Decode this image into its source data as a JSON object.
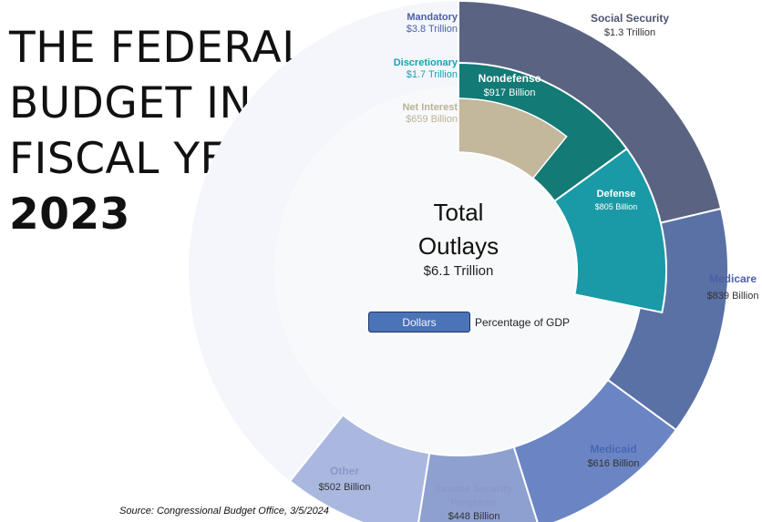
{
  "title": {
    "lines": [
      "THE FEDERAL",
      "BUDGET IN",
      "FISCAL YEAR"
    ],
    "year": "2023"
  },
  "center": {
    "title_line1": "Total",
    "title_line2": "Outlays",
    "value": "$6.1 Trillion"
  },
  "toggle": {
    "dollars_label": "Dollars",
    "gdp_label": "Percentage of GDP",
    "selected": "Dollars"
  },
  "source": "Source: Congressional Budget Office, 3/5/2024",
  "colors": {
    "social_security": "#5a6482",
    "medicare": "#5a71a6",
    "medicaid": "#6b85c4",
    "income_security": "#8ea0d0",
    "other": "#aab8e0",
    "mandatory_text": "#4a5fa6",
    "nondefense": "#137a76",
    "defense": "#1a9aa6",
    "discretionary_text": "#1aa3ad",
    "net_interest": "#c3b79c",
    "net_interest_text": "#bcb197",
    "ring_background": "#f4f6fc",
    "inner_background": "#f8f9fa"
  },
  "chart_data": {
    "type": "sunburst",
    "total": {
      "label": "Total Outlays",
      "value_trillion": 6.1,
      "display": "$6.1 Trillion"
    },
    "inner_ring": [
      {
        "name": "Mandatory",
        "display": "$3.8 Trillion",
        "value_billion": 3800
      },
      {
        "name": "Discretionary",
        "display": "$1.7 Trillion",
        "value_billion": 1700
      },
      {
        "name": "Net Interest",
        "display": "$659 Billion",
        "value_billion": 659
      }
    ],
    "outer_ring": [
      {
        "name": "Social Security",
        "parent": "Mandatory",
        "display": "$1.3 Trillion",
        "value_billion": 1300
      },
      {
        "name": "Medicare",
        "parent": "Mandatory",
        "display": "$839 Billion",
        "value_billion": 839
      },
      {
        "name": "Medicaid",
        "parent": "Mandatory",
        "display": "$616 Billion",
        "value_billion": 616
      },
      {
        "name": "Income Security Programs",
        "parent": "Mandatory",
        "display": "$448 Billion",
        "value_billion": 448
      },
      {
        "name": "Other",
        "parent": "Mandatory",
        "display": "$502 Billion",
        "value_billion": 502
      }
    ],
    "discretionary_ring": [
      {
        "name": "Nondefense",
        "parent": "Discretionary",
        "display": "$917 Billion",
        "value_billion": 917
      },
      {
        "name": "Defense",
        "parent": "Discretionary",
        "display": "$805 Billion",
        "value_billion": 805
      }
    ]
  }
}
